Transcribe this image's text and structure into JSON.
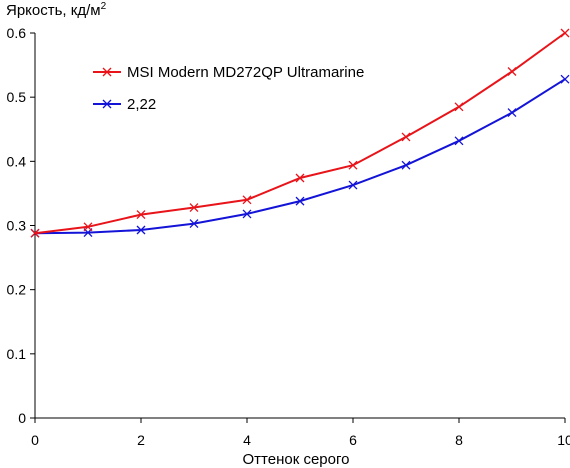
{
  "chart_data": {
    "type": "line",
    "title": "",
    "ylabel_main": "Яркость, кд/м",
    "ylabel_sup": "2",
    "xlabel": "Оттенок серого",
    "xlim": [
      0,
      10
    ],
    "ylim": [
      0,
      0.6
    ],
    "x_ticks": [
      0,
      2,
      4,
      6,
      8,
      10
    ],
    "y_ticks": [
      0,
      0.1,
      0.2,
      0.3,
      0.4,
      0.5,
      0.6
    ],
    "y_tick_labels": [
      "0",
      "0.1",
      "0.2",
      "0.3",
      "0.4",
      "0.5",
      "0.6"
    ],
    "x_tick_labels": [
      "0",
      "2",
      "4",
      "6",
      "8",
      "10"
    ],
    "grid": false,
    "legend_position": "top-left",
    "x": [
      0,
      1,
      2,
      3,
      4,
      5,
      6,
      7,
      8,
      9,
      10
    ],
    "series": [
      {
        "name": "MSI Modern MD272QP Ultramarine",
        "color": "#e8141a",
        "values": [
          0.288,
          0.298,
          0.317,
          0.328,
          0.34,
          0.374,
          0.394,
          0.438,
          0.485,
          0.54,
          0.6
        ]
      },
      {
        "name": "2,22",
        "color": "#1414d8",
        "values": [
          0.288,
          0.289,
          0.293,
          0.303,
          0.318,
          0.338,
          0.363,
          0.394,
          0.432,
          0.476,
          0.528
        ]
      }
    ]
  }
}
